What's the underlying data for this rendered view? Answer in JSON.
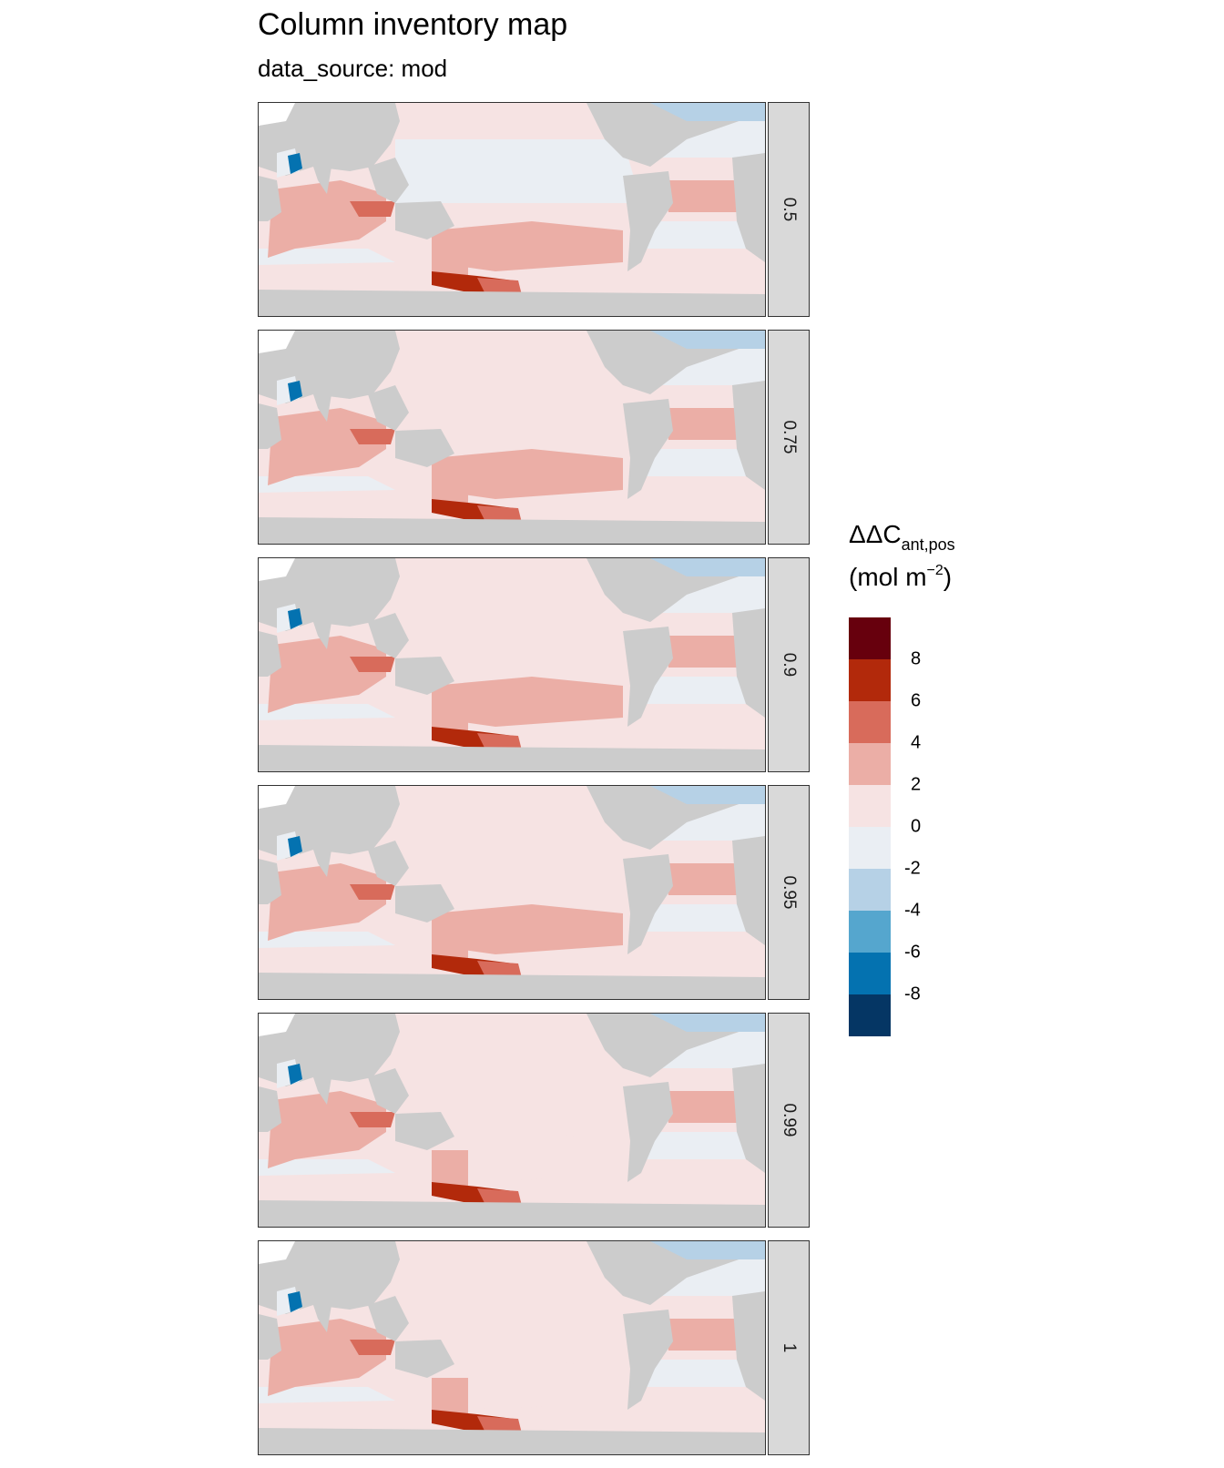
{
  "title": "Column inventory map",
  "subtitle": "data_source: mod",
  "panels": [
    {
      "label": "0.5"
    },
    {
      "label": "0.75"
    },
    {
      "label": "0.9"
    },
    {
      "label": "0.95"
    },
    {
      "label": "0.99"
    },
    {
      "label": "1"
    }
  ],
  "legend": {
    "title_main": "ΔΔC",
    "title_sub": "ant,pos",
    "unit_open": "(mol m",
    "unit_sup": "−2",
    "unit_close": ")",
    "ticks": [
      "8",
      "6",
      "4",
      "2",
      "0",
      "-2",
      "-4",
      "-6",
      "-8"
    ],
    "colors": [
      "#67000d",
      "#b2290b",
      "#d86b5b",
      "#ebaea6",
      "#f6e3e3",
      "#eaeef3",
      "#b6d1e6",
      "#55a6ce",
      "#0472b0",
      "#053664"
    ]
  },
  "colors": {
    "land": "#cccccc",
    "strip": "#d9d9d9",
    "ocean_background": "#f6e1e1"
  }
}
